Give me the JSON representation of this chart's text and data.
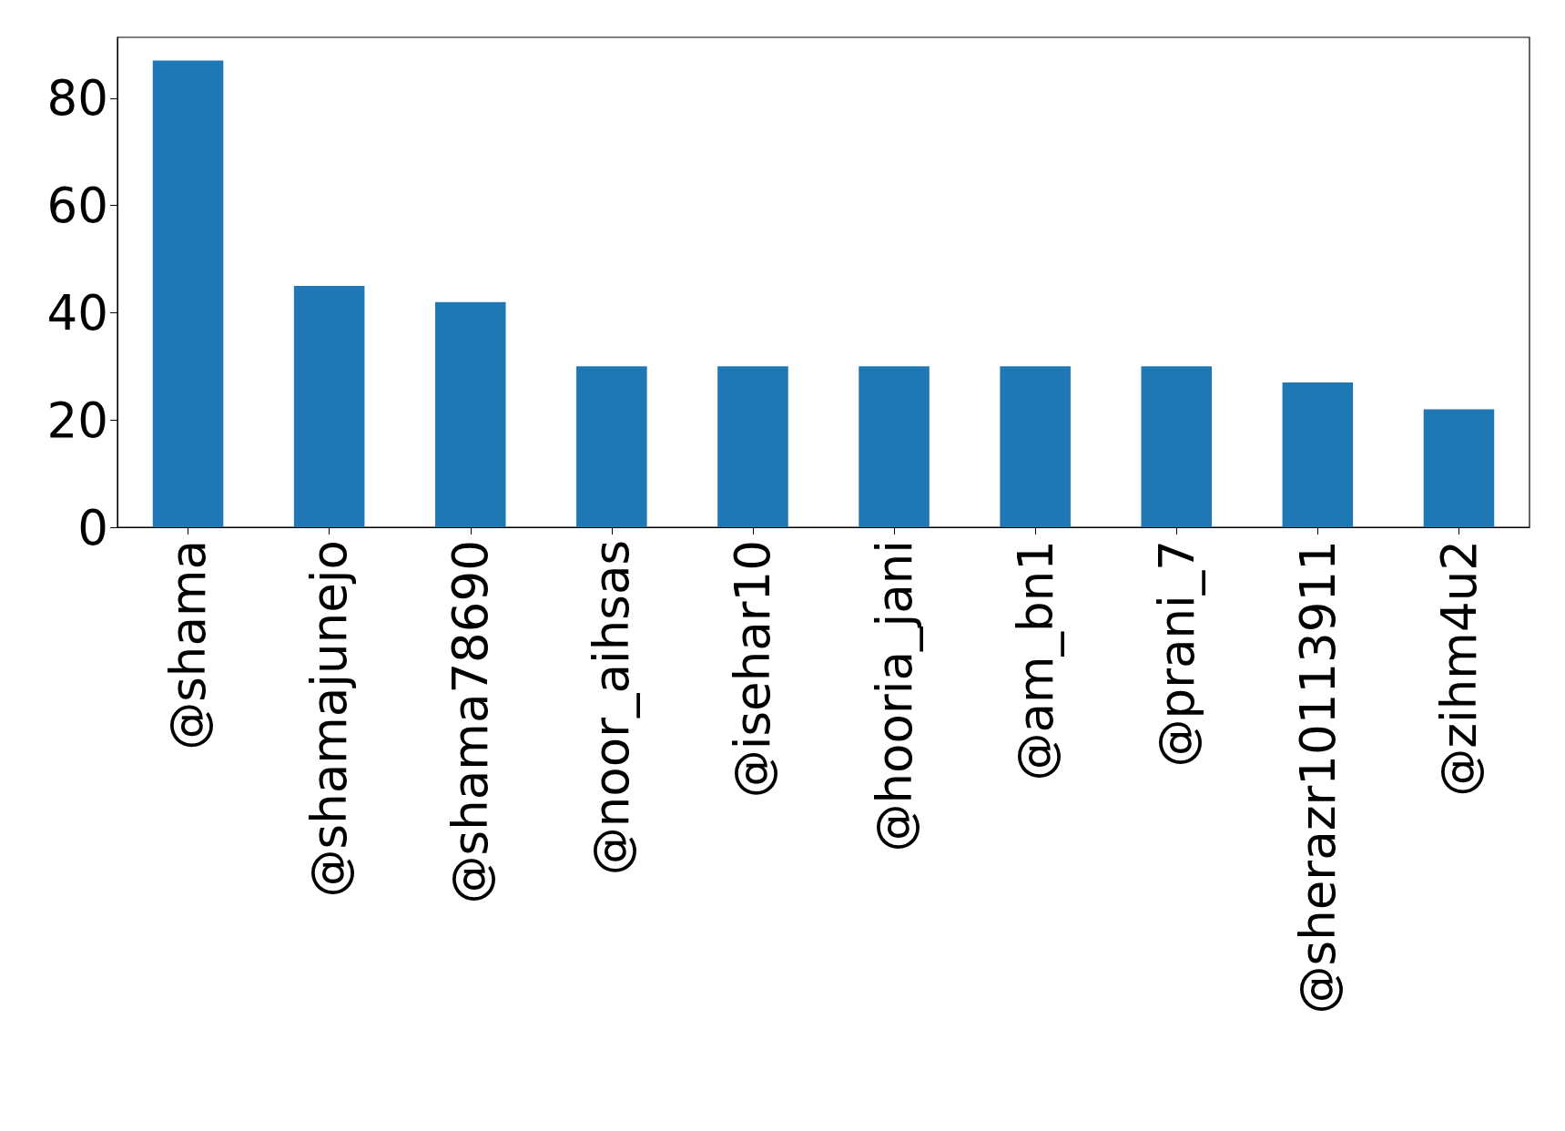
{
  "chart_data": {
    "type": "bar",
    "categories": [
      "@shama",
      "@shamajunejo",
      "@shama78690",
      "@noor_aihsas",
      "@isehar10",
      "@hooria_jani",
      "@am_bn1",
      "@prani_7",
      "@sherazr10113911",
      "@zihm4u2"
    ],
    "values": [
      87,
      45,
      42,
      30,
      30,
      30,
      30,
      30,
      27,
      22
    ],
    "color": "#1f77b4",
    "ylim": [
      0,
      91.35
    ],
    "yticks": [
      0,
      20,
      40,
      60,
      80
    ],
    "grid": false
  }
}
